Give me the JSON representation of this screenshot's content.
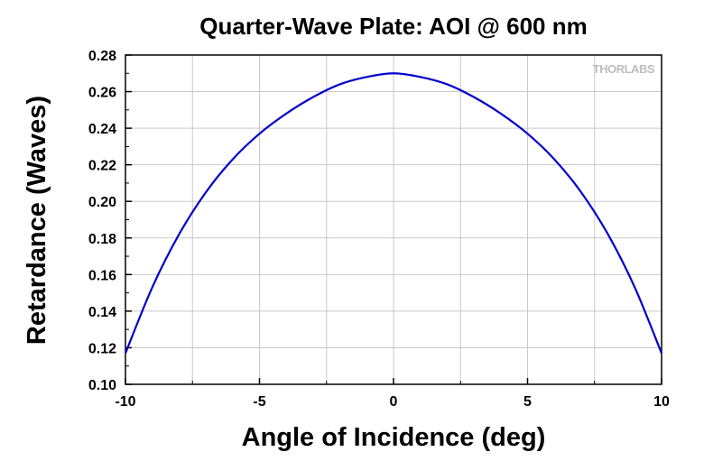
{
  "chart_data": {
    "type": "line",
    "title": "Quarter-Wave Plate: AOI @ 600 nm",
    "xlabel": "Angle of Incidence (deg)",
    "ylabel": "Retardance (Waves)",
    "xlim": [
      -10,
      10
    ],
    "ylim": [
      0.1,
      0.28
    ],
    "xticks": [
      -10,
      -5,
      0,
      5,
      10
    ],
    "xtick_labels": [
      "-10",
      "-5",
      "0",
      "5",
      "10"
    ],
    "yticks": [
      0.1,
      0.12,
      0.14,
      0.16,
      0.18,
      0.2,
      0.22,
      0.24,
      0.26,
      0.28
    ],
    "ytick_labels": [
      "0.10",
      "0.12",
      "0.14",
      "0.16",
      "0.18",
      "0.20",
      "0.22",
      "0.24",
      "0.26",
      "0.28"
    ],
    "grid": true,
    "series": [
      {
        "color": "#0000cc",
        "x": [
          -10,
          -9,
          -8,
          -7,
          -6,
          -5,
          -4,
          -3,
          -2,
          -1,
          0,
          1,
          2,
          3,
          4,
          5,
          6,
          7,
          8,
          9,
          10
        ],
        "y": [
          0.117,
          0.153,
          0.182,
          0.205,
          0.223,
          0.237,
          0.248,
          0.257,
          0.264,
          0.268,
          0.27,
          0.268,
          0.264,
          0.257,
          0.248,
          0.237,
          0.223,
          0.205,
          0.182,
          0.153,
          0.117
        ]
      }
    ]
  },
  "watermark": {
    "text": "THORLABS",
    "color": "#bdbdbd"
  }
}
